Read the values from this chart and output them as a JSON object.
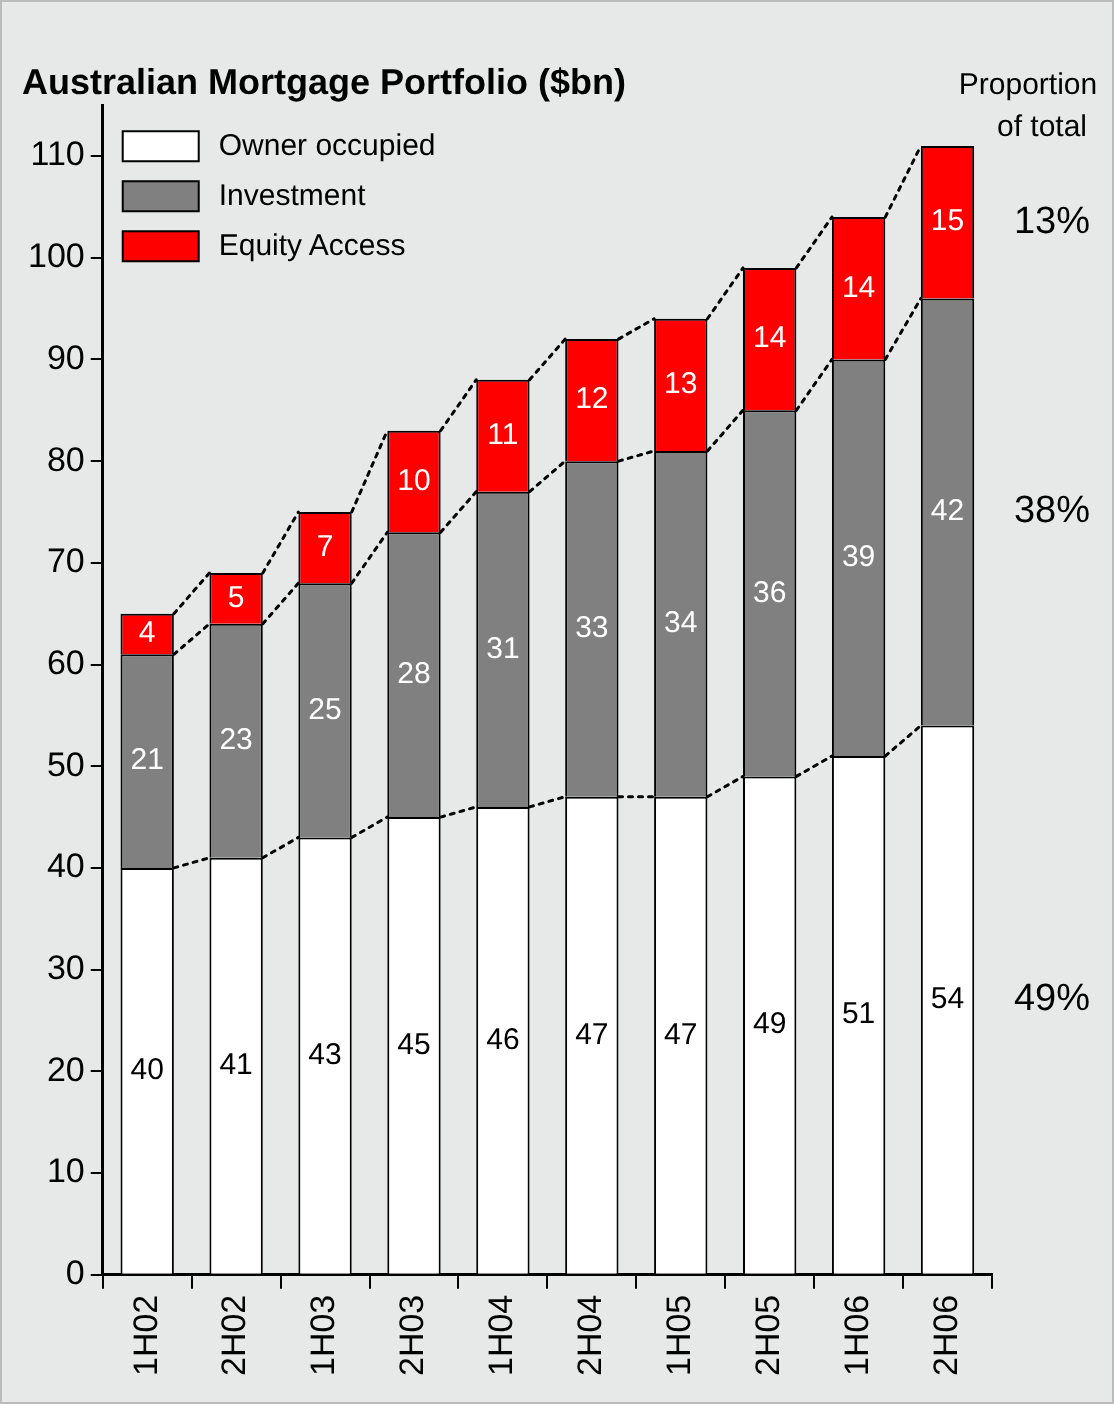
{
  "chart_data": {
    "type": "bar",
    "title": "Australian Mortgage Portfolio ($bn)",
    "stacked": true,
    "categories": [
      "1H02",
      "2H02",
      "1H03",
      "2H03",
      "1H04",
      "2H04",
      "1H05",
      "2H05",
      "1H06",
      "2H06"
    ],
    "series": [
      {
        "name": "Owner occupied",
        "color": "#ffffff",
        "values": [
          40,
          41,
          43,
          45,
          46,
          47,
          47,
          49,
          51,
          54
        ]
      },
      {
        "name": "Investment",
        "color": "#808080",
        "values": [
          21,
          23,
          25,
          28,
          31,
          33,
          34,
          36,
          39,
          42
        ]
      },
      {
        "name": "Equity Access",
        "color": "#ff0000",
        "values": [
          4,
          5,
          7,
          10,
          11,
          12,
          13,
          14,
          14,
          15
        ]
      }
    ],
    "ylim": [
      0,
      115
    ],
    "yticks": [
      0,
      10,
      20,
      30,
      40,
      50,
      60,
      70,
      80,
      90,
      100,
      110
    ],
    "grid": false,
    "legend": "top left",
    "data_labels": true,
    "annotations": [
      "Proportion of total",
      "49%",
      "38%",
      "13%"
    ]
  }
}
